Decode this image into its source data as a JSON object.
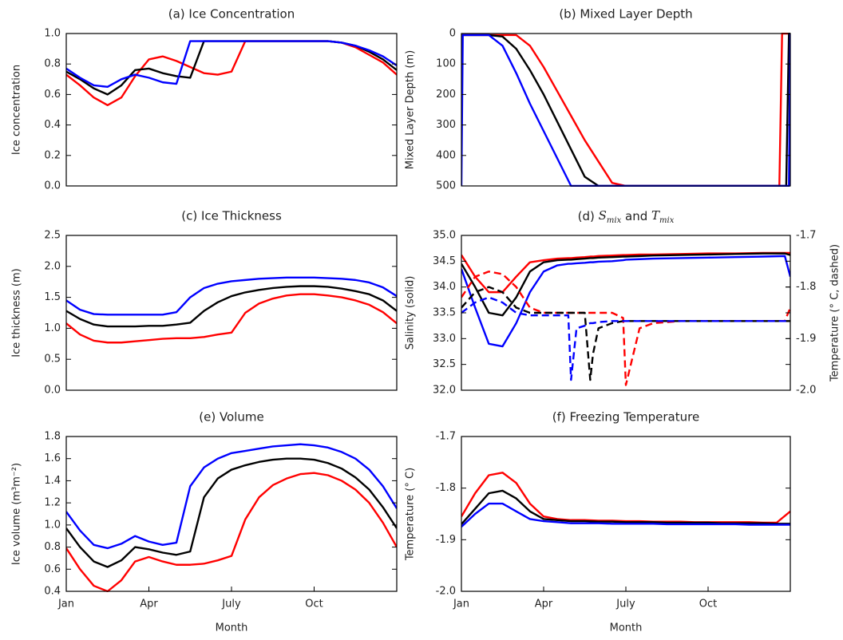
{
  "chart_data": [
    {
      "type": "line",
      "title": "(a) Ice Concentration",
      "ylabel": "Ice concentration",
      "x": [
        0,
        0.5,
        1,
        1.5,
        2,
        2.5,
        3,
        3.5,
        4,
        4.5,
        5,
        5.5,
        6,
        6.5,
        7,
        7.5,
        8,
        8.5,
        9,
        9.5,
        10,
        10.5,
        11,
        11.5,
        12
      ],
      "xlim": [
        0,
        12
      ],
      "ylim": [
        0,
        1
      ],
      "yticks": [
        {
          "value": 0,
          "label": "0.0"
        },
        0.2,
        0.4,
        0.6,
        0.8,
        {
          "value": 1,
          "label": "1.0"
        }
      ],
      "series": [
        {
          "color": "#ff0000",
          "values": [
            0.73,
            0.66,
            0.58,
            0.53,
            0.58,
            0.72,
            0.83,
            0.85,
            0.82,
            0.78,
            0.74,
            0.73,
            0.75,
            0.95,
            0.95,
            0.95,
            0.95,
            0.95,
            0.95,
            0.95,
            0.94,
            0.91,
            0.86,
            0.81,
            0.73
          ]
        },
        {
          "color": "#000000",
          "values": [
            0.75,
            0.7,
            0.64,
            0.6,
            0.66,
            0.76,
            0.77,
            0.74,
            0.72,
            0.71,
            0.95,
            0.95,
            0.95,
            0.95,
            0.95,
            0.95,
            0.95,
            0.95,
            0.95,
            0.95,
            0.94,
            0.92,
            0.88,
            0.83,
            0.76
          ]
        },
        {
          "color": "#0000ff",
          "values": [
            0.77,
            0.71,
            0.66,
            0.65,
            0.7,
            0.73,
            0.71,
            0.68,
            0.67,
            0.95,
            0.95,
            0.95,
            0.95,
            0.95,
            0.95,
            0.95,
            0.95,
            0.95,
            0.95,
            0.95,
            0.94,
            0.92,
            0.89,
            0.85,
            0.79
          ]
        }
      ]
    },
    {
      "type": "line",
      "title": "(b) Mixed Layer Depth",
      "ylabel": "Mixed Layer Depth (m)",
      "x": [
        0,
        0.05,
        1,
        1.5,
        2,
        2.5,
        3,
        3.5,
        4,
        4.5,
        5,
        5.5,
        6,
        8,
        10,
        11.6,
        11.7,
        11.85,
        11.95,
        12
      ],
      "xlim": [
        0,
        12
      ],
      "ylim": [
        500,
        0
      ],
      "yticks": [
        0,
        100,
        200,
        300,
        400,
        500
      ],
      "series": [
        {
          "color": "#ff0000",
          "values": [
            5,
            5,
            5,
            5,
            5,
            40,
            110,
            190,
            270,
            350,
            420,
            490,
            500,
            500,
            500,
            500,
            0,
            0,
            0,
            0
          ]
        },
        {
          "color": "#000000",
          "values": [
            5,
            5,
            5,
            10,
            50,
            120,
            200,
            290,
            380,
            470,
            500,
            500,
            500,
            500,
            500,
            500,
            500,
            500,
            0,
            0
          ]
        },
        {
          "color": "#0000ff",
          "values": [
            500,
            5,
            5,
            40,
            130,
            230,
            320,
            410,
            500,
            500,
            500,
            500,
            500,
            500,
            500,
            500,
            500,
            500,
            500,
            0
          ]
        }
      ]
    },
    {
      "type": "line",
      "title": "(c) Ice Thickness",
      "ylabel": "Ice thickness (m)",
      "x": [
        0,
        0.5,
        1,
        1.5,
        2,
        2.5,
        3,
        3.5,
        4,
        4.5,
        5,
        5.5,
        6,
        6.5,
        7,
        7.5,
        8,
        8.5,
        9,
        9.5,
        10,
        10.5,
        11,
        11.5,
        12
      ],
      "xlim": [
        0,
        12
      ],
      "ylim": [
        0,
        2.5
      ],
      "yticks": [
        {
          "value": 0,
          "label": "0.0"
        },
        0.5,
        {
          "value": 1,
          "label": "1.0"
        },
        1.5,
        {
          "value": 2,
          "label": "2.0"
        },
        2.5
      ],
      "series": [
        {
          "color": "#ff0000",
          "values": [
            1.08,
            0.9,
            0.8,
            0.77,
            0.77,
            0.79,
            0.81,
            0.83,
            0.84,
            0.84,
            0.86,
            0.9,
            0.93,
            1.25,
            1.4,
            1.48,
            1.53,
            1.55,
            1.55,
            1.53,
            1.5,
            1.45,
            1.38,
            1.26,
            1.08
          ]
        },
        {
          "color": "#000000",
          "values": [
            1.28,
            1.15,
            1.06,
            1.03,
            1.03,
            1.03,
            1.04,
            1.04,
            1.06,
            1.09,
            1.28,
            1.42,
            1.52,
            1.58,
            1.62,
            1.65,
            1.67,
            1.68,
            1.68,
            1.67,
            1.64,
            1.6,
            1.55,
            1.45,
            1.28
          ]
        },
        {
          "color": "#0000ff",
          "values": [
            1.45,
            1.3,
            1.23,
            1.22,
            1.22,
            1.22,
            1.22,
            1.22,
            1.26,
            1.5,
            1.65,
            1.72,
            1.76,
            1.78,
            1.8,
            1.81,
            1.82,
            1.82,
            1.82,
            1.81,
            1.8,
            1.78,
            1.74,
            1.66,
            1.52
          ]
        }
      ]
    },
    {
      "type": "line",
      "title": [
        {
          "text": "(d) "
        },
        {
          "text": "S",
          "style": "italic"
        },
        {
          "text": "mix",
          "style": "sub"
        },
        {
          "text": " and "
        },
        {
          "text": "T",
          "style": "italic"
        },
        {
          "text": "mix",
          "style": "sub"
        }
      ],
      "ylabel": "Salinity (solid)",
      "y2label": "Temperature (° C, dashed)",
      "x": [
        0,
        0.5,
        1,
        1.5,
        2,
        2.5,
        3,
        3.5,
        3.9,
        4.0,
        4.2,
        4.5,
        4.7,
        4.8,
        5,
        5.5,
        5.9,
        6.0,
        6.5,
        7,
        8,
        9,
        10,
        11,
        11.8,
        12
      ],
      "xlim": [
        0,
        12
      ],
      "ylim": [
        32,
        35
      ],
      "yticks": [
        {
          "value": 32,
          "label": "32.0"
        },
        32.5,
        {
          "value": 33,
          "label": "33.0"
        },
        33.5,
        {
          "value": 34,
          "label": "34.0"
        },
        34.5,
        {
          "value": 35,
          "label": "35.0"
        }
      ],
      "y2lim": [
        -2.0,
        -1.7
      ],
      "y2ticks": [
        {
          "value": -2,
          "label": "-2.0"
        },
        -1.9,
        -1.8,
        -1.7
      ],
      "series": [
        {
          "color": "#ff0000",
          "values": [
            34.62,
            34.2,
            33.9,
            33.9,
            34.2,
            34.48,
            34.52,
            34.55,
            34.56,
            34.56,
            34.57,
            34.58,
            34.59,
            34.59,
            34.6,
            34.61,
            34.62,
            34.62,
            34.63,
            34.63,
            34.64,
            34.65,
            34.65,
            34.66,
            34.66,
            34.66
          ]
        },
        {
          "color": "#000000",
          "values": [
            34.45,
            34.0,
            33.5,
            33.45,
            33.8,
            34.3,
            34.48,
            34.52,
            34.53,
            34.53,
            34.54,
            34.55,
            34.56,
            34.56,
            34.57,
            34.58,
            34.59,
            34.59,
            34.6,
            34.61,
            34.62,
            34.63,
            34.64,
            34.65,
            34.65,
            34.62
          ]
        },
        {
          "color": "#0000ff",
          "values": [
            34.35,
            33.6,
            32.9,
            32.85,
            33.3,
            33.9,
            34.3,
            34.42,
            34.45,
            34.45,
            34.46,
            34.47,
            34.48,
            34.48,
            34.49,
            34.5,
            34.52,
            34.53,
            34.54,
            34.55,
            34.56,
            34.57,
            34.58,
            34.59,
            34.6,
            34.2
          ]
        },
        {
          "color": "#ff0000",
          "axis": "y2",
          "dash": true,
          "values": [
            -1.82,
            -1.78,
            -1.77,
            -1.775,
            -1.8,
            -1.84,
            -1.85,
            -1.85,
            -1.85,
            -1.85,
            -1.85,
            -1.85,
            -1.85,
            -1.85,
            -1.85,
            -1.85,
            -1.86,
            -1.99,
            -1.88,
            -1.87,
            -1.866,
            -1.866,
            -1.866,
            -1.866,
            -1.866,
            -1.84
          ]
        },
        {
          "color": "#000000",
          "axis": "y2",
          "dash": true,
          "values": [
            -1.84,
            -1.81,
            -1.8,
            -1.81,
            -1.84,
            -1.85,
            -1.85,
            -1.85,
            -1.85,
            -1.85,
            -1.85,
            -1.85,
            -1.98,
            -1.93,
            -1.88,
            -1.87,
            -1.866,
            -1.866,
            -1.866,
            -1.866,
            -1.866,
            -1.866,
            -1.866,
            -1.866,
            -1.866,
            -1.866
          ]
        },
        {
          "color": "#0000ff",
          "axis": "y2",
          "dash": true,
          "values": [
            -1.85,
            -1.83,
            -1.82,
            -1.83,
            -1.85,
            -1.855,
            -1.855,
            -1.855,
            -1.855,
            -1.98,
            -1.88,
            -1.875,
            -1.87,
            -1.87,
            -1.868,
            -1.866,
            -1.866,
            -1.866,
            -1.866,
            -1.866,
            -1.866,
            -1.866,
            -1.866,
            -1.866,
            -1.866,
            -1.866
          ]
        }
      ]
    },
    {
      "type": "line",
      "title": "(e) Volume",
      "ylabel": "Ice volume (m³m⁻²)",
      "xlabel": "Month",
      "x": [
        0,
        0.5,
        1,
        1.5,
        2,
        2.5,
        3,
        3.5,
        4,
        4.5,
        5,
        5.5,
        6,
        6.5,
        7,
        7.5,
        8,
        8.5,
        9,
        9.5,
        10,
        10.5,
        11,
        11.5,
        12
      ],
      "xlim": [
        0,
        12
      ],
      "xticks": [
        {
          "value": 0,
          "label": "Jan"
        },
        {
          "value": 3,
          "label": "Apr"
        },
        {
          "value": 6,
          "label": "July"
        },
        {
          "value": 9,
          "label": "Oct"
        }
      ],
      "ylim": [
        0.4,
        1.8
      ],
      "yticks": [
        0.4,
        0.6,
        0.8,
        {
          "value": 1,
          "label": "1.0"
        },
        1.2,
        1.4,
        1.6,
        1.8
      ],
      "series": [
        {
          "color": "#ff0000",
          "values": [
            0.79,
            0.6,
            0.45,
            0.4,
            0.5,
            0.67,
            0.71,
            0.67,
            0.64,
            0.64,
            0.65,
            0.68,
            0.72,
            1.05,
            1.25,
            1.36,
            1.42,
            1.46,
            1.47,
            1.45,
            1.4,
            1.32,
            1.2,
            1.02,
            0.8
          ]
        },
        {
          "color": "#000000",
          "values": [
            0.97,
            0.8,
            0.67,
            0.62,
            0.68,
            0.8,
            0.78,
            0.75,
            0.73,
            0.76,
            1.25,
            1.42,
            1.5,
            1.54,
            1.57,
            1.59,
            1.6,
            1.6,
            1.59,
            1.56,
            1.51,
            1.43,
            1.32,
            1.16,
            0.97
          ]
        },
        {
          "color": "#0000ff",
          "values": [
            1.12,
            0.95,
            0.82,
            0.79,
            0.83,
            0.9,
            0.85,
            0.82,
            0.84,
            1.35,
            1.52,
            1.6,
            1.65,
            1.67,
            1.69,
            1.71,
            1.72,
            1.73,
            1.72,
            1.7,
            1.66,
            1.6,
            1.5,
            1.35,
            1.15
          ]
        }
      ]
    },
    {
      "type": "line",
      "title": "(f) Freezing Temperature",
      "ylabel": "Temperature  (° C)",
      "xlabel": "Month",
      "x": [
        0,
        0.5,
        1,
        1.5,
        2,
        2.5,
        3,
        3.5,
        4,
        4.5,
        5,
        5.5,
        6,
        6.5,
        7,
        7.5,
        8,
        8.5,
        9,
        9.5,
        10,
        10.5,
        11,
        11.5,
        12
      ],
      "xlim": [
        0,
        12
      ],
      "xticks": [
        {
          "value": 0,
          "label": "Jan"
        },
        {
          "value": 3,
          "label": "Apr"
        },
        {
          "value": 6,
          "label": "July"
        },
        {
          "value": 9,
          "label": "Oct"
        }
      ],
      "ylim": [
        -2.0,
        -1.7
      ],
      "yticks": [
        {
          "value": -2,
          "label": "-2.0"
        },
        -1.9,
        -1.8,
        -1.7
      ],
      "series": [
        {
          "color": "#ff0000",
          "values": [
            -1.855,
            -1.81,
            -1.775,
            -1.77,
            -1.79,
            -1.83,
            -1.855,
            -1.86,
            -1.862,
            -1.862,
            -1.863,
            -1.863,
            -1.864,
            -1.864,
            -1.865,
            -1.865,
            -1.865,
            -1.866,
            -1.866,
            -1.866,
            -1.866,
            -1.866,
            -1.867,
            -1.867,
            -1.845
          ]
        },
        {
          "color": "#000000",
          "values": [
            -1.87,
            -1.84,
            -1.81,
            -1.805,
            -1.82,
            -1.845,
            -1.86,
            -1.862,
            -1.864,
            -1.864,
            -1.865,
            -1.865,
            -1.866,
            -1.866,
            -1.866,
            -1.867,
            -1.867,
            -1.867,
            -1.867,
            -1.868,
            -1.868,
            -1.868,
            -1.868,
            -1.869,
            -1.869
          ]
        },
        {
          "color": "#0000ff",
          "values": [
            -1.875,
            -1.85,
            -1.83,
            -1.83,
            -1.845,
            -1.86,
            -1.864,
            -1.866,
            -1.868,
            -1.868,
            -1.868,
            -1.869,
            -1.869,
            -1.869,
            -1.869,
            -1.87,
            -1.87,
            -1.87,
            -1.87,
            -1.87,
            -1.87,
            -1.871,
            -1.871,
            -1.871,
            -1.871
          ]
        }
      ]
    }
  ]
}
